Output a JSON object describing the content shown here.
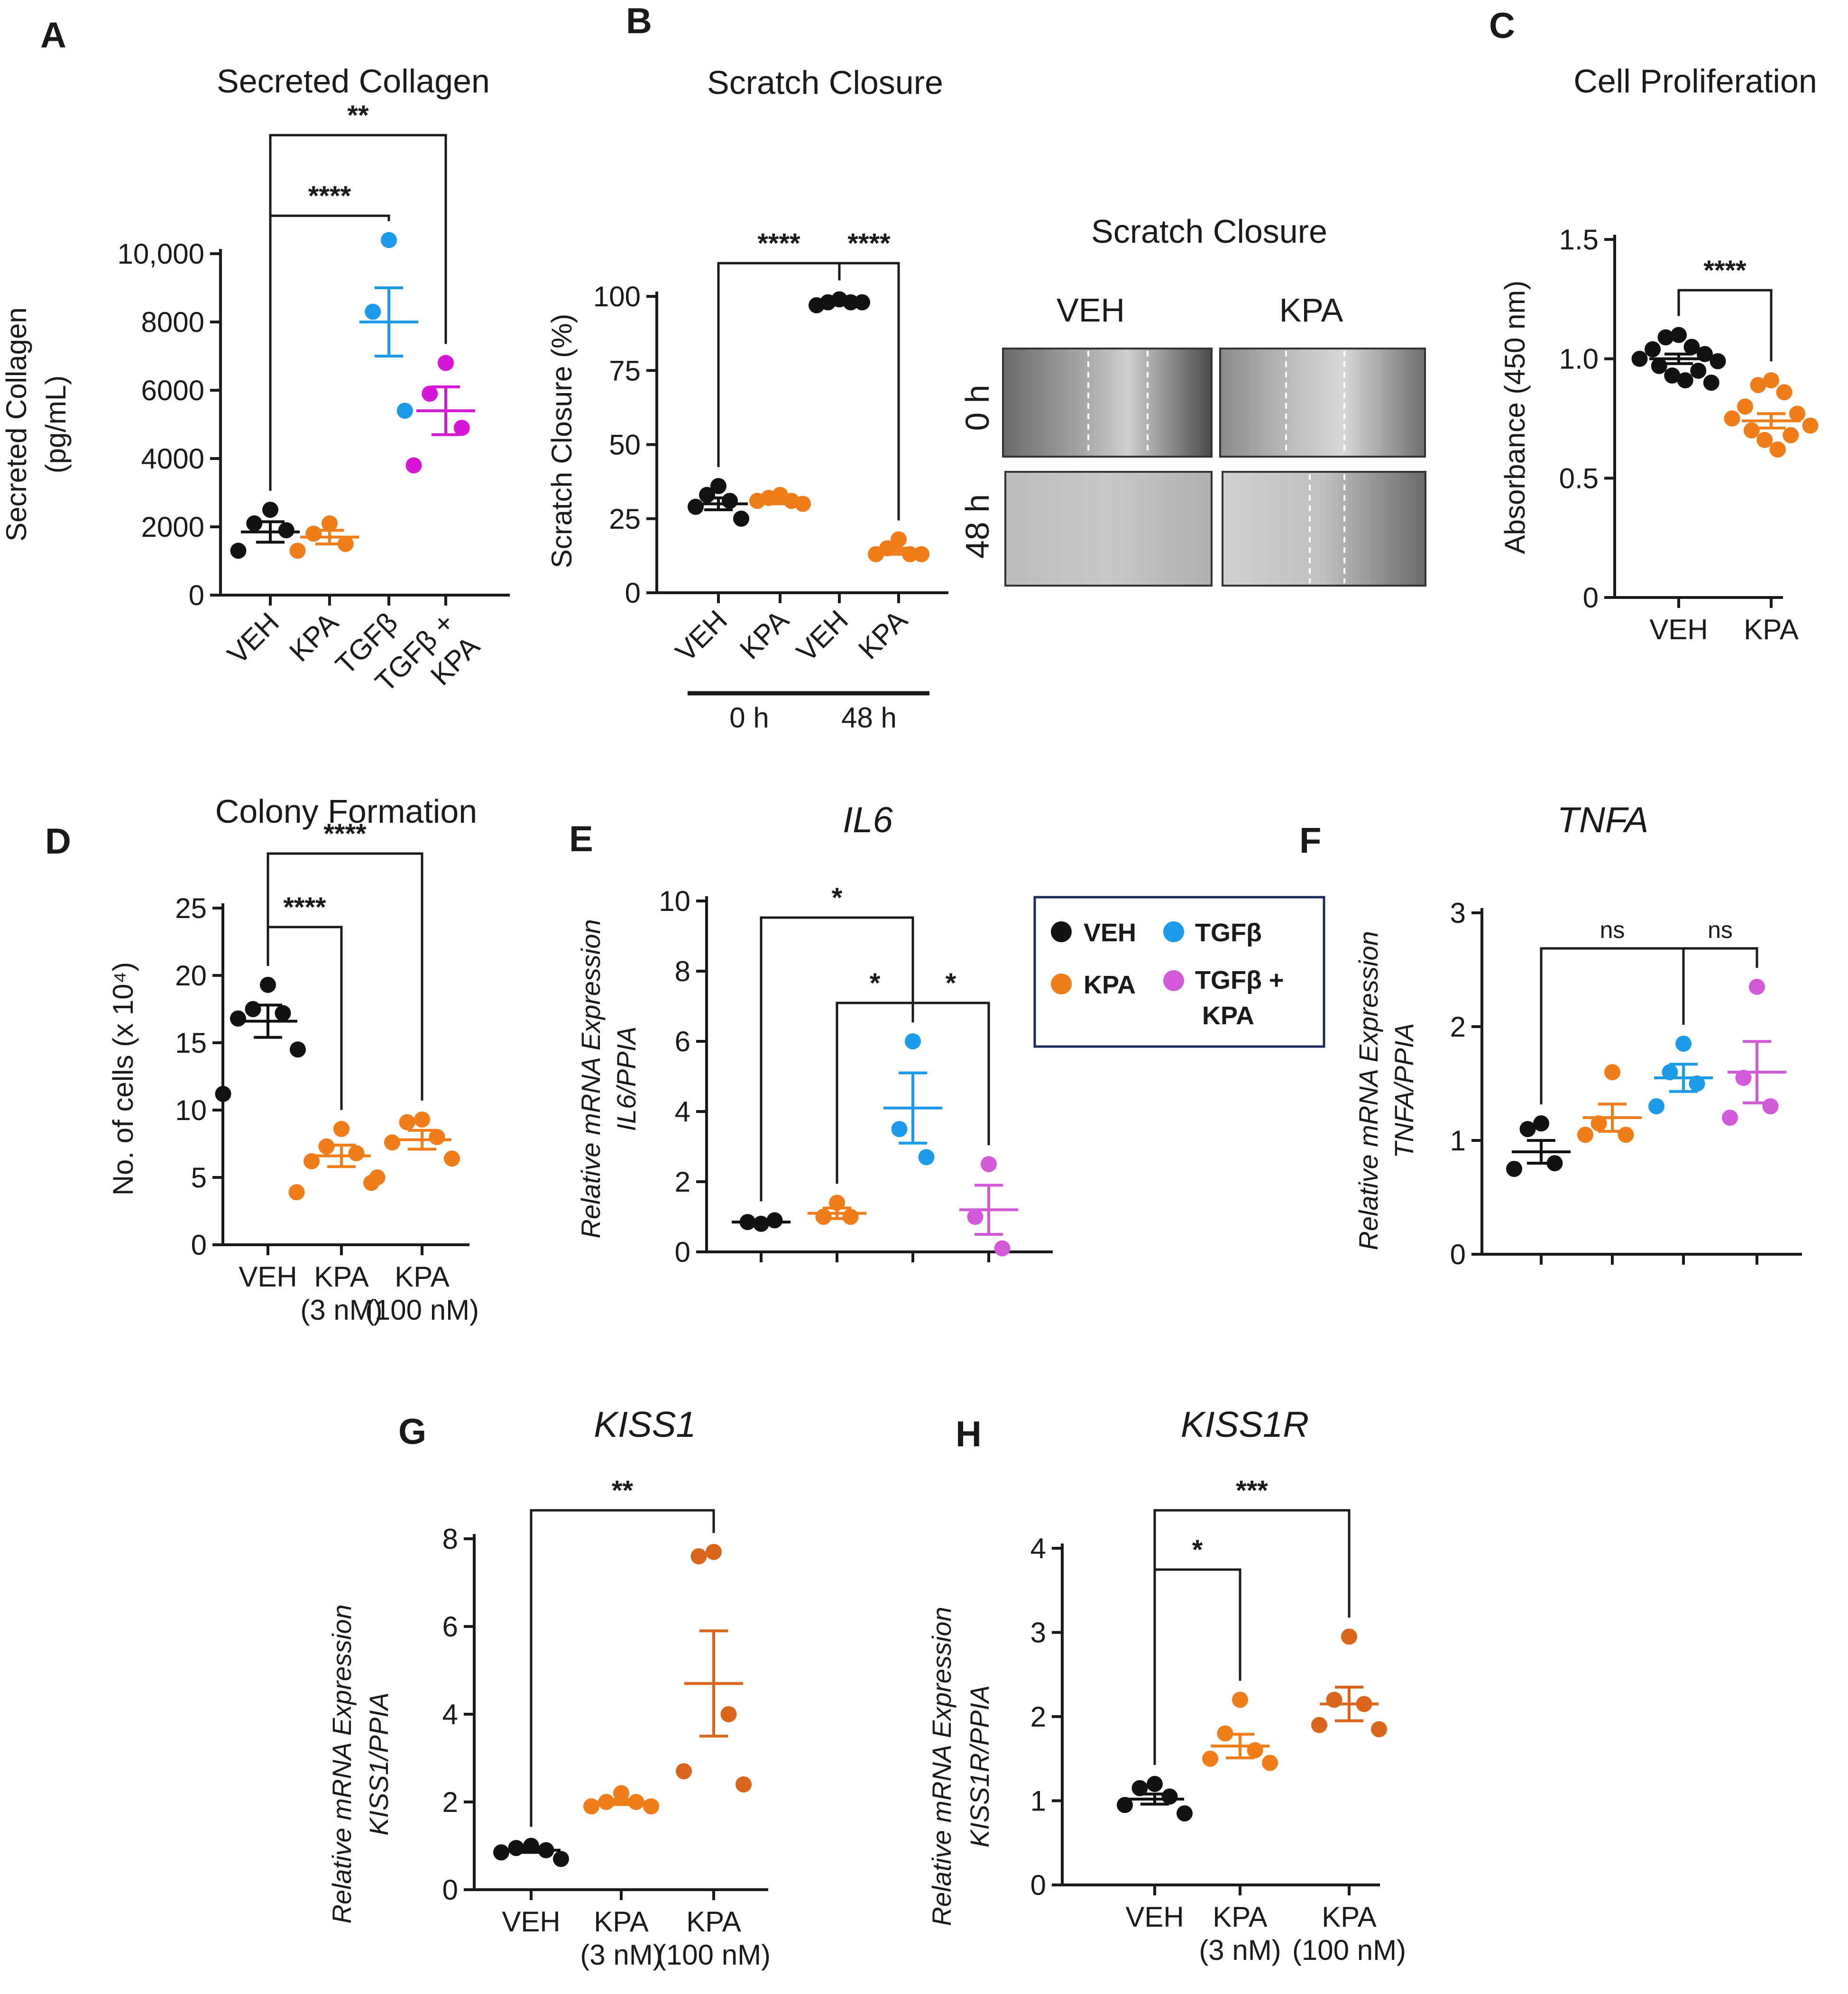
{
  "colors": {
    "VEH": "#111111",
    "KPA": "#f07c1a",
    "KPA_dark": "#d9661a",
    "TGFb": "#1e9be8",
    "TGFb_KPA_A": "#d616d6",
    "TGFb_KPA": "#d25ad8"
  },
  "legend": {
    "items": [
      {
        "label": "VEH",
        "color": "#111111"
      },
      {
        "label": "TGFβ",
        "color": "#1e9be8"
      },
      {
        "label": "KPA",
        "color": "#f07c1a"
      },
      {
        "label": "TGFβ +",
        "label2": "KPA",
        "color": "#d25ad8"
      }
    ]
  },
  "micrographs": {
    "title": "Scratch Closure",
    "col_veh": "VEH",
    "col_kpa": "KPA",
    "row_0h": "0 h",
    "row_48h": "48 h"
  },
  "chart_data": [
    {
      "id": "A",
      "letter": "A",
      "type": "scatter",
      "title": "Secreted Collagen",
      "ylabel": "Secreted Collagen",
      "ylabel2": "(pg/mL)",
      "ylim": [
        0,
        10000
      ],
      "yticks": [
        {
          "v": 0,
          "label": "0"
        },
        {
          "v": 2000,
          "label": "2000"
        },
        {
          "v": 4000,
          "label": "4000"
        },
        {
          "v": 6000,
          "label": "6000"
        },
        {
          "v": 8000,
          "label": "8000"
        },
        {
          "v": 10000,
          "label": "10,000"
        }
      ],
      "categories": [
        {
          "label": "VEH"
        },
        {
          "label": "KPA"
        },
        {
          "label": "TGFβ"
        },
        {
          "label": "TGFβ +",
          "label2": "KPA"
        }
      ],
      "series": [
        {
          "name": "VEH",
          "color": "#111111",
          "points": [
            2500,
            2100,
            1900,
            1300
          ],
          "mean": 1850,
          "sem": 300
        },
        {
          "name": "KPA",
          "color": "#f07c1a",
          "points": [
            2100,
            1800,
            1500,
            1300
          ],
          "mean": 1700,
          "sem": 200
        },
        {
          "name": "TGFβ",
          "color": "#1e9be8",
          "points": [
            10400,
            8300,
            5400
          ],
          "mean": 8000,
          "sem": 1000
        },
        {
          "name": "TGFβ + KPA",
          "color": "#d616d6",
          "points": [
            6800,
            5900,
            4900,
            3800
          ],
          "mean": 5400,
          "sem": 700
        }
      ],
      "significance": [
        {
          "from": 0,
          "to": 2,
          "label": "****"
        },
        {
          "from": 0,
          "to": 3,
          "label": "**"
        }
      ]
    },
    {
      "id": "B",
      "letter": "B",
      "type": "scatter",
      "title": "Scratch Closure",
      "ylabel": "Scratch Closure (%)",
      "ylim": [
        0,
        100
      ],
      "yticks": [
        {
          "v": 0,
          "label": "0"
        },
        {
          "v": 25,
          "label": "25"
        },
        {
          "v": 50,
          "label": "50"
        },
        {
          "v": 75,
          "label": "75"
        },
        {
          "v": 100,
          "label": "100"
        }
      ],
      "categories": [
        {
          "label": "VEH"
        },
        {
          "label": "KPA"
        },
        {
          "label": "VEH"
        },
        {
          "label": "KPA"
        }
      ],
      "groups": [
        {
          "label": "0 h",
          "from": 0,
          "to": 1
        },
        {
          "label": "48 h",
          "from": 2,
          "to": 3
        }
      ],
      "series": [
        {
          "name": "VEH 0 h",
          "color": "#111111",
          "points": [
            36,
            33,
            31,
            29,
            25
          ],
          "mean": 30,
          "sem": 2
        },
        {
          "name": "KPA 0 h",
          "color": "#f07c1a",
          "points": [
            33,
            32,
            31,
            31,
            30
          ],
          "mean": 31,
          "sem": 1
        },
        {
          "name": "VEH 48 h",
          "color": "#111111",
          "points": [
            99,
            98,
            98,
            97,
            98
          ],
          "mean": 98,
          "sem": 0.5
        },
        {
          "name": "KPA 48 h",
          "color": "#f07c1a",
          "points": [
            18,
            15,
            13,
            13,
            13
          ],
          "mean": 14,
          "sem": 1
        }
      ],
      "significance": [
        {
          "from": 0,
          "to": 2,
          "label": "****"
        },
        {
          "from": 2,
          "to": 3,
          "label": "****"
        }
      ]
    },
    {
      "id": "C",
      "letter": "C",
      "type": "scatter",
      "title": "Cell Proliferation",
      "ylabel": "Absorbance (450 nm)",
      "ylim": [
        0,
        1.5
      ],
      "yticks": [
        {
          "v": 0,
          "label": "0"
        },
        {
          "v": 0.5,
          "label": "0.5"
        },
        {
          "v": 1.0,
          "label": "1.0"
        },
        {
          "v": 1.5,
          "label": "1.5"
        }
      ],
      "categories": [
        {
          "label": "VEH"
        },
        {
          "label": "KPA"
        }
      ],
      "series": [
        {
          "name": "VEH",
          "color": "#111111",
          "points": [
            1.1,
            1.09,
            1.05,
            1.04,
            1.02,
            1.0,
            0.99,
            0.97,
            0.95,
            0.93,
            0.91,
            0.9
          ],
          "mean": 1.0,
          "sem": 0.02
        },
        {
          "name": "KPA",
          "color": "#f07c1a",
          "points": [
            0.91,
            0.89,
            0.86,
            0.8,
            0.77,
            0.75,
            0.72,
            0.7,
            0.68,
            0.66,
            0.62
          ],
          "mean": 0.74,
          "sem": 0.03
        }
      ],
      "significance": [
        {
          "from": 0,
          "to": 1,
          "label": "****"
        }
      ]
    },
    {
      "id": "D",
      "letter": "D",
      "type": "scatter",
      "title": "Colony Formation",
      "ylabel": "No. of cells (x 10⁴)",
      "ylim": [
        0,
        25
      ],
      "yticks": [
        {
          "v": 0,
          "label": "0"
        },
        {
          "v": 5,
          "label": "5"
        },
        {
          "v": 10,
          "label": "10"
        },
        {
          "v": 15,
          "label": "15"
        },
        {
          "v": 20,
          "label": "20"
        },
        {
          "v": 25,
          "label": "25"
        }
      ],
      "categories": [
        {
          "label": "VEH"
        },
        {
          "label": "KPA",
          "label2": "(3 nM)"
        },
        {
          "label": "KPA",
          "label2": "(100 nM)"
        }
      ],
      "series": [
        {
          "name": "VEH",
          "color": "#111111",
          "points": [
            19.3,
            17.5,
            17.2,
            16.8,
            14.5,
            11.2
          ],
          "mean": 16.6,
          "sem": 1.2
        },
        {
          "name": "KPA (3 nM)",
          "color": "#f07c1a",
          "points": [
            8.6,
            7.3,
            6.8,
            6.2,
            4.6,
            3.9
          ],
          "mean": 6.6,
          "sem": 0.8
        },
        {
          "name": "KPA (100 nM)",
          "color": "#f07c1a",
          "points": [
            9.3,
            9.1,
            8.0,
            7.6,
            6.4,
            5.0
          ],
          "mean": 7.8,
          "sem": 0.7
        }
      ],
      "significance": [
        {
          "from": 0,
          "to": 1,
          "label": "****"
        },
        {
          "from": 0,
          "to": 2,
          "label": "****"
        }
      ]
    },
    {
      "id": "E",
      "letter": "E",
      "type": "scatter",
      "title": "IL6",
      "ylabel": "Relative mRNA Expression",
      "ylabel2": "IL6/PPIA",
      "ylim": [
        0,
        10
      ],
      "yticks": [
        {
          "v": 0,
          "label": "0"
        },
        {
          "v": 2,
          "label": "2"
        },
        {
          "v": 4,
          "label": "4"
        },
        {
          "v": 6,
          "label": "6"
        },
        {
          "v": 8,
          "label": "8"
        },
        {
          "v": 10,
          "label": "10"
        }
      ],
      "categories": [
        {
          "label": ""
        },
        {
          "label": ""
        },
        {
          "label": ""
        },
        {
          "label": ""
        }
      ],
      "series": [
        {
          "name": "VEH",
          "color": "#111111",
          "points": [
            0.8,
            0.85,
            0.9
          ],
          "mean": 0.85,
          "sem": 0.05
        },
        {
          "name": "KPA",
          "color": "#f07c1a",
          "points": [
            1.4,
            1.0,
            1.0
          ],
          "mean": 1.1,
          "sem": 0.15
        },
        {
          "name": "TGFβ",
          "color": "#1e9be8",
          "points": [
            6.0,
            3.5,
            2.7
          ],
          "mean": 4.1,
          "sem": 1.0
        },
        {
          "name": "TGFβ + KPA",
          "color": "#d25ad8",
          "points": [
            2.5,
            1.0,
            0.1
          ],
          "mean": 1.2,
          "sem": 0.7
        }
      ],
      "significance": [
        {
          "from": 0,
          "to": 2,
          "label": "*"
        },
        {
          "from": 1,
          "to": 2,
          "label": "*"
        },
        {
          "from": 2,
          "to": 3,
          "label": "*"
        }
      ]
    },
    {
      "id": "F",
      "letter": "F",
      "type": "scatter",
      "title": "TNFA",
      "ylabel": "Relative mRNA Expression",
      "ylabel2": "TNFA/PPIA",
      "ylim": [
        0,
        3
      ],
      "yticks": [
        {
          "v": 0,
          "label": "0"
        },
        {
          "v": 1,
          "label": "1"
        },
        {
          "v": 2,
          "label": "2"
        },
        {
          "v": 3,
          "label": "3"
        }
      ],
      "categories": [
        {
          "label": ""
        },
        {
          "label": ""
        },
        {
          "label": ""
        },
        {
          "label": ""
        }
      ],
      "series": [
        {
          "name": "VEH",
          "color": "#111111",
          "points": [
            1.15,
            1.1,
            0.8,
            0.75
          ],
          "mean": 0.9,
          "sem": 0.1
        },
        {
          "name": "KPA",
          "color": "#f07c1a",
          "points": [
            1.6,
            1.15,
            1.05,
            1.05
          ],
          "mean": 1.2,
          "sem": 0.12
        },
        {
          "name": "TGFβ",
          "color": "#1e9be8",
          "points": [
            1.85,
            1.6,
            1.5,
            1.3
          ],
          "mean": 1.55,
          "sem": 0.12
        },
        {
          "name": "TGFβ + KPA",
          "color": "#d25ad8",
          "points": [
            2.35,
            1.55,
            1.3,
            1.2
          ],
          "mean": 1.6,
          "sem": 0.27
        }
      ],
      "significance": [
        {
          "from": 0,
          "to": 2,
          "label": "ns"
        },
        {
          "from": 2,
          "to": 3,
          "label": "ns"
        }
      ]
    },
    {
      "id": "G",
      "letter": "G",
      "type": "scatter",
      "title": "KISS1",
      "ylabel": "Relative mRNA Expression",
      "ylabel2": "KISS1/PPIA",
      "ylim": [
        0,
        8
      ],
      "yticks": [
        {
          "v": 0,
          "label": "0"
        },
        {
          "v": 2,
          "label": "2"
        },
        {
          "v": 4,
          "label": "4"
        },
        {
          "v": 6,
          "label": "6"
        },
        {
          "v": 8,
          "label": "8"
        }
      ],
      "categories": [
        {
          "label": "VEH"
        },
        {
          "label": "KPA",
          "label2": "(3 nM)"
        },
        {
          "label": "KPA",
          "label2": "(100 nM)"
        }
      ],
      "series": [
        {
          "name": "VEH",
          "color": "#111111",
          "points": [
            1.0,
            0.95,
            0.9,
            0.85,
            0.7
          ],
          "mean": 0.9,
          "sem": 0.05
        },
        {
          "name": "KPA (3 nM)",
          "color": "#f07c1a",
          "points": [
            2.2,
            2.0,
            2.0,
            1.9,
            1.9
          ],
          "mean": 2.0,
          "sem": 0.06
        },
        {
          "name": "KPA (100 nM)",
          "color": "#d9661a",
          "points": [
            7.7,
            7.6,
            4.0,
            2.7,
            2.4
          ],
          "mean": 4.7,
          "sem": 1.2
        }
      ],
      "significance": [
        {
          "from": 0,
          "to": 2,
          "label": "**"
        }
      ]
    },
    {
      "id": "H",
      "letter": "H",
      "type": "scatter",
      "title": "KISS1R",
      "ylabel": "Relative mRNA Expression",
      "ylabel2": "KISS1R/PPIA",
      "ylim": [
        0,
        4
      ],
      "yticks": [
        {
          "v": 0,
          "label": "0"
        },
        {
          "v": 1,
          "label": "1"
        },
        {
          "v": 2,
          "label": "2"
        },
        {
          "v": 3,
          "label": "3"
        },
        {
          "v": 4,
          "label": "4"
        }
      ],
      "categories": [
        {
          "label": "VEH"
        },
        {
          "label": "KPA",
          "label2": "(3 nM)"
        },
        {
          "label": "KPA",
          "label2": "(100 nM)"
        }
      ],
      "series": [
        {
          "name": "VEH",
          "color": "#111111",
          "points": [
            1.2,
            1.15,
            1.05,
            0.95,
            0.85
          ],
          "mean": 1.02,
          "sem": 0.06
        },
        {
          "name": "KPA (3 nM)",
          "color": "#f07c1a",
          "points": [
            2.2,
            1.8,
            1.6,
            1.5,
            1.45
          ],
          "mean": 1.65,
          "sem": 0.14
        },
        {
          "name": "KPA (100 nM)",
          "color": "#d9661a",
          "points": [
            2.95,
            2.2,
            2.15,
            1.9,
            1.85
          ],
          "mean": 2.15,
          "sem": 0.2
        }
      ],
      "significance": [
        {
          "from": 0,
          "to": 1,
          "label": "*"
        },
        {
          "from": 0,
          "to": 2,
          "label": "***"
        }
      ]
    }
  ]
}
